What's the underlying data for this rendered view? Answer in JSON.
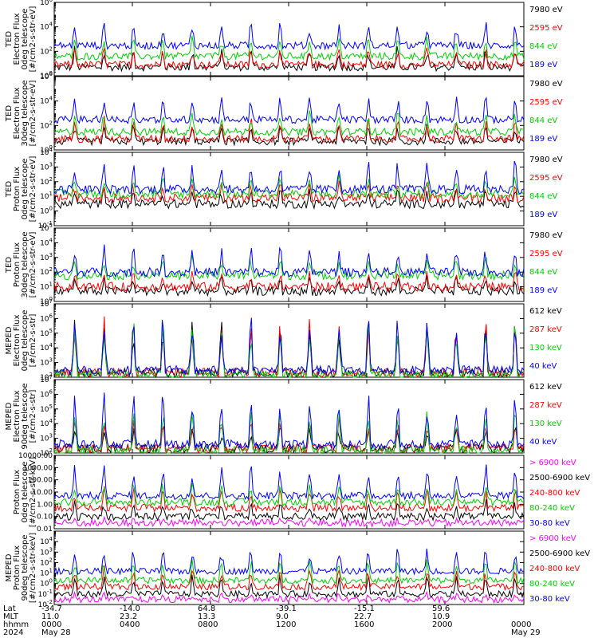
{
  "chart_data": [
    {
      "type": "line",
      "ylabel_lines": [
        "TED",
        "Electron Flux",
        "0deg telescope",
        "[#/cm2-s-str-eV]"
      ],
      "y_scale": "log",
      "ylim": [
        1,
        1000000
      ],
      "yticks": [
        "10^0",
        "10^2",
        "10^4",
        "10^6"
      ],
      "series": [
        {
          "name": "7980 eV",
          "color": "#000000",
          "base": 5,
          "peak": 200
        },
        {
          "name": "2595 eV",
          "color": "#ff0000",
          "base": 8,
          "peak": 300
        },
        {
          "name": "844 eV",
          "color": "#00d000",
          "base": 40,
          "peak": 1500
        },
        {
          "name": "189 eV",
          "color": "#0000ff",
          "base": 300,
          "peak": 20000
        }
      ]
    },
    {
      "type": "line",
      "ylabel_lines": [
        "TED",
        "Electron Flux",
        "30deg telescope",
        "[#/cm2-s-str-eV]"
      ],
      "y_scale": "log",
      "ylim": [
        1,
        1000000
      ],
      "yticks": [
        "10^0",
        "10^2",
        "10^4",
        "10^6"
      ],
      "series": [
        {
          "name": "7980 eV",
          "color": "#000000",
          "base": 5,
          "peak": 150
        },
        {
          "name": "2595 eV",
          "color": "#ff0000",
          "base": 8,
          "peak": 400
        },
        {
          "name": "844 eV",
          "color": "#00d000",
          "base": 30,
          "peak": 1500
        },
        {
          "name": "189 eV",
          "color": "#0000ff",
          "base": 300,
          "peak": 30000
        }
      ]
    },
    {
      "type": "line",
      "ylabel_lines": [
        "TED",
        "Proton Flux",
        "0deg telescope",
        "[#/cm2-s-str-eV]"
      ],
      "y_scale": "log",
      "ylim": [
        0.1,
        10000
      ],
      "yticks": [
        "10^-1",
        "10^0",
        "10^1",
        "10^2",
        "10^3",
        "10^4"
      ],
      "series": [
        {
          "name": "7980 eV",
          "color": "#000000",
          "base": 3,
          "peak": 30
        },
        {
          "name": "2595 eV",
          "color": "#ff0000",
          "base": 8,
          "peak": 80
        },
        {
          "name": "844 eV",
          "color": "#00d000",
          "base": 15,
          "peak": 200
        },
        {
          "name": "189 eV",
          "color": "#0000ff",
          "base": 30,
          "peak": 3000
        }
      ]
    },
    {
      "type": "line",
      "ylabel_lines": [
        "TED",
        "Proton Flux",
        "30deg telescope",
        "[#/cm2-s-str-eV]"
      ],
      "y_scale": "log",
      "ylim": [
        1,
        100000
      ],
      "yticks": [
        "10^0",
        "10^1",
        "10^2",
        "10^3",
        "10^4",
        "10^5"
      ],
      "series": [
        {
          "name": "7980 eV",
          "color": "#000000",
          "base": 5,
          "peak": 40
        },
        {
          "name": "2595 eV",
          "color": "#ff0000",
          "base": 10,
          "peak": 100
        },
        {
          "name": "844 eV",
          "color": "#00d000",
          "base": 60,
          "peak": 1000
        },
        {
          "name": "189 eV",
          "color": "#0000ff",
          "base": 100,
          "peak": 5000
        }
      ]
    },
    {
      "type": "line",
      "ylabel_lines": [
        "MEPED",
        "Electron Flux",
        "0deg telescope",
        "[#/cm2-s-str]"
      ],
      "y_scale": "log",
      "ylim": [
        100,
        10000000
      ],
      "yticks": [
        "10^2",
        "10^3",
        "10^4",
        "10^5",
        "10^6",
        "10^7"
      ],
      "series": [
        {
          "name": "612 keV",
          "color": "#000000",
          "base": 200,
          "peak": 1000000
        },
        {
          "name": "287 keV",
          "color": "#ff0000",
          "base": 200,
          "peak": 1000000
        },
        {
          "name": "130 keV",
          "color": "#00d000",
          "base": 150,
          "peak": 1000000
        },
        {
          "name": "40 keV",
          "color": "#0000ff",
          "base": 300,
          "peak": 1500000
        }
      ]
    },
    {
      "type": "line",
      "ylabel_lines": [
        "MEPED",
        "Electron Flux",
        "90deg telescope",
        "[#/cm2-s-str]"
      ],
      "y_scale": "log",
      "ylim": [
        100,
        10000000
      ],
      "yticks": [
        "10^2",
        "10^3",
        "10^4",
        "10^5",
        "10^6",
        "10^7"
      ],
      "series": [
        {
          "name": "612 keV",
          "color": "#000000",
          "base": 200,
          "peak": 10000
        },
        {
          "name": "287 keV",
          "color": "#ff0000",
          "base": 200,
          "peak": 30000
        },
        {
          "name": "130 keV",
          "color": "#00d000",
          "base": 150,
          "peak": 100000
        },
        {
          "name": "40 keV",
          "color": "#0000ff",
          "base": 400,
          "peak": 800000
        }
      ]
    },
    {
      "type": "line",
      "ylabel_lines": [
        "Proton Flux",
        "0deg telescope",
        "[#/cm2-s-str-keV]"
      ],
      "y_scale": "log",
      "ylim": [
        0.01,
        10000
      ],
      "yticks": [
        "0.01",
        "0.10",
        "1.00",
        "10.00",
        "100.00",
        "1000.00",
        "10000.00"
      ],
      "series": [
        {
          "name": "> 6900 keV",
          "color": "#ff00ff",
          "base": 0.03,
          "peak": 0.05
        },
        {
          "name": "2500-6900 keV",
          "color": "#000000",
          "base": 0.1,
          "peak": 2
        },
        {
          "name": "240-800 keV",
          "color": "#ff0000",
          "base": 0.5,
          "peak": 30
        },
        {
          "name": "80-240 keV",
          "color": "#00d000",
          "base": 1.5,
          "peak": 50
        },
        {
          "name": "30-80 keV",
          "color": "#0000ff",
          "base": 5,
          "peak": 2000
        }
      ]
    },
    {
      "type": "line",
      "ylabel_lines": [
        "MEPED",
        "Proton Flux",
        "90deg telescope",
        "[#/cm2-s-str-keV]"
      ],
      "y_scale": "log",
      "ylim": [
        0.01,
        100000
      ],
      "yticks": [
        "10^-2",
        "10^-1",
        "10^0",
        "10^1",
        "10^2",
        "10^3",
        "10^4"
      ],
      "series": [
        {
          "name": "> 6900 keV",
          "color": "#ff00ff",
          "base": 0.03,
          "peak": 0.1
        },
        {
          "name": "2500-6900 keV",
          "color": "#000000",
          "base": 0.1,
          "peak": 5
        },
        {
          "name": "240-800 keV",
          "color": "#ff0000",
          "base": 0.5,
          "peak": 30
        },
        {
          "name": "80-240 keV",
          "color": "#00d000",
          "base": 2,
          "peak": 200
        },
        {
          "name": "30-80 keV",
          "color": "#0000ff",
          "base": 15,
          "peak": 3000
        }
      ]
    }
  ],
  "footer": {
    "row_labels": [
      "Lat",
      "MLT",
      "hhmm",
      "2024"
    ],
    "columns": [
      {
        "lat": "-34.7",
        "mlt": "11.0",
        "hhmm": "0000",
        "date": "May 28"
      },
      {
        "lat": "-14.0",
        "mlt": "23.2",
        "hhmm": "0400",
        "date": ""
      },
      {
        "lat": "64.8",
        "mlt": "13.3",
        "hhmm": "0800",
        "date": ""
      },
      {
        "lat": "-39.1",
        "mlt": "9.0",
        "hhmm": "1200",
        "date": ""
      },
      {
        "lat": "-15.1",
        "mlt": "22.7",
        "hhmm": "1600",
        "date": ""
      },
      {
        "lat": "59.6",
        "mlt": "10.9",
        "hhmm": "2000",
        "date": ""
      },
      {
        "lat": "",
        "mlt": "",
        "hhmm": "0000",
        "date": "May 29"
      }
    ]
  }
}
